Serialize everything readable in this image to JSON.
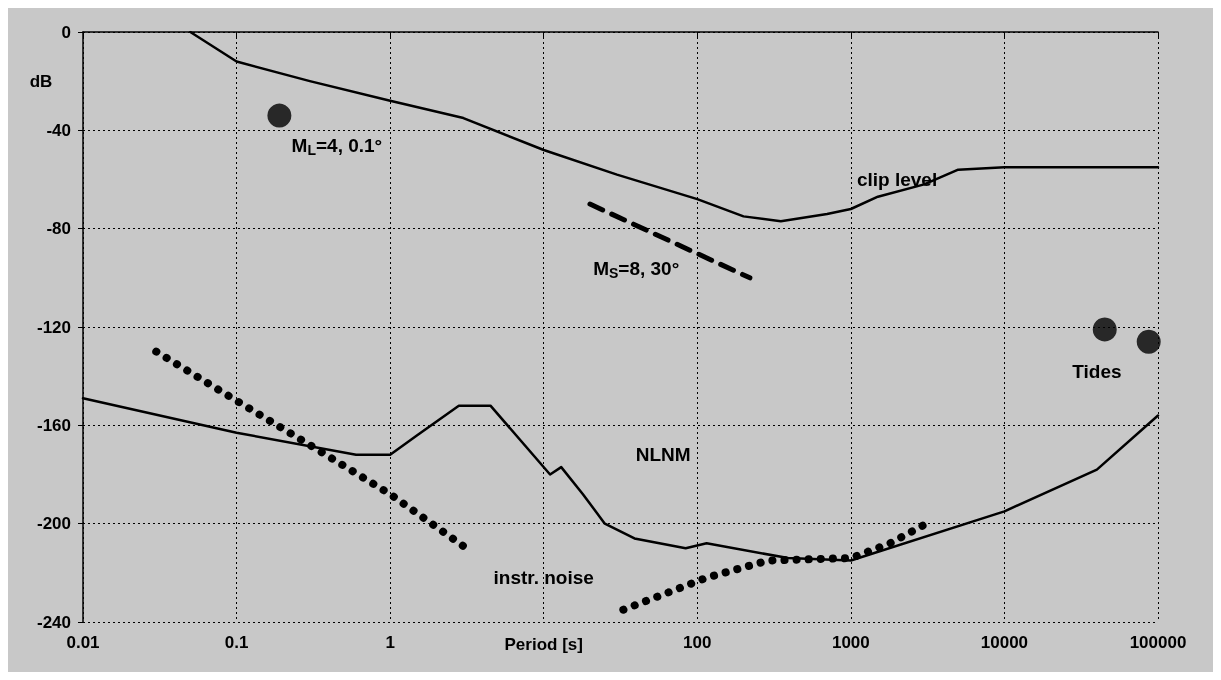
{
  "chart_data": {
    "type": "line",
    "xlabel": "Period [s]",
    "ylabel": "dB",
    "log": "x",
    "grid": true,
    "xlim": [
      0.01,
      100000
    ],
    "xticks": [
      0.01,
      0.1,
      1,
      {
        "value": 10,
        "label": null
      },
      100,
      1000,
      10000,
      100000
    ],
    "ylim": [
      -240,
      0
    ],
    "yticks": [
      0,
      -40,
      -80,
      -120,
      -160,
      -200,
      -240
    ],
    "series": [
      {
        "color": "#000000",
        "line_style": "solid",
        "x": [
          0.05,
          0.1,
          0.3,
          1,
          3,
          10,
          30,
          100,
          200,
          350,
          700,
          1000,
          1500,
          3000,
          5000,
          10000,
          100000
        ],
        "values": [
          0,
          -12,
          -20,
          -28,
          -35,
          -48,
          -58,
          -68,
          -75,
          -77,
          -74,
          -72,
          -67,
          -62,
          -56,
          -55,
          -55
        ]
      },
      {
        "color": "#000000",
        "line_style": "solid",
        "x": [
          0.01,
          0.1,
          0.6,
          1,
          1.5,
          2.8,
          4.5,
          11,
          13,
          18,
          25,
          39,
          84,
          115,
          390,
          1000,
          10000,
          40000,
          100000
        ],
        "values": [
          -149,
          -163,
          -172,
          -172,
          -164,
          -152,
          -152,
          -180,
          -177,
          -188,
          -200,
          -206,
          -210,
          -208,
          -214,
          -215,
          -195,
          -178,
          -156
        ]
      },
      {
        "color": "#000000",
        "line_style": "dotted",
        "x": [
          0.03,
          0.1,
          0.3,
          1,
          3.3
        ],
        "values": [
          -130,
          -150,
          -168,
          -188,
          -211
        ]
      },
      {
        "color": "#000000",
        "line_style": "dotted",
        "x": [
          33,
          115,
          290,
          1000,
          1800,
          3100
        ],
        "values": [
          -235,
          -222,
          -215,
          -214,
          -208,
          -200
        ]
      },
      {
        "color": "#000000",
        "line_style": "dashed",
        "x": [
          20,
          220
        ],
        "values": [
          -70,
          -100
        ]
      },
      {
        "type": "scatter",
        "color": "#000000",
        "marker": "circle",
        "x": [
          0.19,
          45000,
          87000
        ],
        "values": [
          -34,
          -121,
          -126
        ]
      }
    ],
    "annotations": [
      "M$_{L}$=4, 0.1°",
      "M$_{S}$=8, 30°",
      "clip level",
      "Tides",
      "NLNM",
      "instr. noise"
    ]
  }
}
